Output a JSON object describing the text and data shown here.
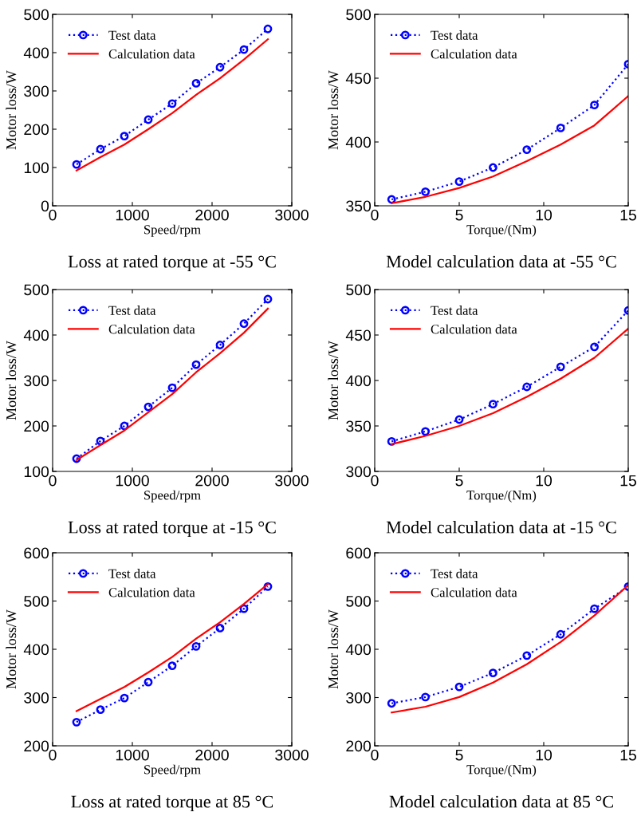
{
  "chart_data": [
    {
      "type": "line",
      "title": "Loss at rated torque at -55 °C",
      "xlabel": "Speed/rpm",
      "ylabel": "Motor loss/W",
      "x": [
        300,
        600,
        900,
        1200,
        1500,
        1800,
        2100,
        2400,
        2700
      ],
      "xlim": [
        0,
        3000
      ],
      "xticks": [
        0,
        1000,
        2000,
        3000
      ],
      "ylim": [
        0,
        500
      ],
      "yticks": [
        0,
        100,
        200,
        300,
        400,
        500
      ],
      "legend": "top left",
      "grid": false,
      "series": [
        {
          "name": "Test data",
          "color": "#0000ff",
          "marker": "circle",
          "line_style": "dotted",
          "values": [
            108,
            148,
            182,
            225,
            267,
            320,
            362,
            408,
            462
          ]
        },
        {
          "name": "Calculation data",
          "color": "#ff0000",
          "marker": "none",
          "line_style": "solid",
          "values": [
            92,
            127,
            160,
            200,
            242,
            290,
            333,
            382,
            435
          ]
        }
      ]
    },
    {
      "type": "line",
      "title": "Model calculation data at -55 °C",
      "xlabel": "Torque/(Nm)",
      "ylabel": "Motor loss/W",
      "x": [
        1,
        3,
        5,
        7,
        9,
        11,
        13,
        15
      ],
      "xlim": [
        0,
        15
      ],
      "xticks": [
        0,
        5,
        10,
        15
      ],
      "ylim": [
        350,
        500
      ],
      "yticks": [
        350,
        400,
        450,
        500
      ],
      "legend": "top left",
      "grid": false,
      "series": [
        {
          "name": "Test data",
          "color": "#0000ff",
          "marker": "circle",
          "line_style": "dotted",
          "values": [
            355,
            361,
            369,
            380,
            394,
            411,
            429,
            461
          ]
        },
        {
          "name": "Calculation data",
          "color": "#ff0000",
          "marker": "none",
          "line_style": "solid",
          "values": [
            352,
            357,
            364,
            373,
            385,
            398,
            413,
            436
          ]
        }
      ]
    },
    {
      "type": "line",
      "title": "Loss at rated torque at -15 °C",
      "xlabel": "Speed/rpm",
      "ylabel": "Motor loss/W",
      "x": [
        300,
        600,
        900,
        1200,
        1500,
        1800,
        2100,
        2400,
        2700
      ],
      "xlim": [
        0,
        3000
      ],
      "xticks": [
        0,
        1000,
        2000,
        3000
      ],
      "ylim": [
        100,
        500
      ],
      "yticks": [
        100,
        200,
        300,
        400,
        500
      ],
      "legend": "top left",
      "grid": false,
      "series": [
        {
          "name": "Test data",
          "color": "#0000ff",
          "marker": "circle",
          "line_style": "dotted",
          "values": [
            128,
            167,
            200,
            242,
            284,
            335,
            378,
            425,
            479
          ]
        },
        {
          "name": "Calculation data",
          "color": "#ff0000",
          "marker": "none",
          "line_style": "solid",
          "values": [
            125,
            158,
            190,
            230,
            270,
            318,
            360,
            405,
            458
          ]
        }
      ]
    },
    {
      "type": "line",
      "title": "Model calculation data at -15 °C",
      "xlabel": "Torque/(Nm)",
      "ylabel": "Motor loss/W",
      "x": [
        1,
        3,
        5,
        7,
        9,
        11,
        13,
        15
      ],
      "xlim": [
        0,
        15
      ],
      "xticks": [
        0,
        5,
        10,
        15
      ],
      "ylim": [
        300,
        500
      ],
      "yticks": [
        300,
        350,
        400,
        450,
        500
      ],
      "legend": "top left",
      "grid": false,
      "series": [
        {
          "name": "Test data",
          "color": "#0000ff",
          "marker": "circle",
          "line_style": "dotted",
          "values": [
            333,
            344,
            357,
            374,
            393,
            415,
            437,
            477
          ]
        },
        {
          "name": "Calculation data",
          "color": "#ff0000",
          "marker": "none",
          "line_style": "solid",
          "values": [
            330,
            339,
            350,
            364,
            382,
            402,
            425,
            457
          ]
        }
      ]
    },
    {
      "type": "line",
      "title": "Loss at rated torque at 85 °C",
      "xlabel": "Speed/rpm",
      "ylabel": "Motor loss/W",
      "x": [
        300,
        600,
        900,
        1200,
        1500,
        1800,
        2100,
        2400,
        2700
      ],
      "xlim": [
        0,
        3000
      ],
      "xticks": [
        0,
        1000,
        2000,
        3000
      ],
      "ylim": [
        200,
        600
      ],
      "yticks": [
        200,
        300,
        400,
        500,
        600
      ],
      "legend": "top left",
      "grid": false,
      "series": [
        {
          "name": "Test data",
          "color": "#0000ff",
          "marker": "circle",
          "line_style": "dotted",
          "values": [
            249,
            275,
            299,
            332,
            366,
            406,
            444,
            484,
            530
          ]
        },
        {
          "name": "Calculation data",
          "color": "#ff0000",
          "marker": "none",
          "line_style": "solid",
          "values": [
            272,
            297,
            322,
            352,
            384,
            422,
            456,
            494,
            535
          ]
        }
      ]
    },
    {
      "type": "line",
      "title": "Model calculation data at 85 °C",
      "xlabel": "Torque/(Nm)",
      "ylabel": "Motor loss/W",
      "x": [
        1,
        3,
        5,
        7,
        9,
        11,
        13,
        15
      ],
      "xlim": [
        0,
        15
      ],
      "xticks": [
        0,
        5,
        10,
        15
      ],
      "ylim": [
        200,
        600
      ],
      "yticks": [
        200,
        300,
        400,
        500,
        600
      ],
      "legend": "top left",
      "grid": false,
      "series": [
        {
          "name": "Test data",
          "color": "#0000ff",
          "marker": "circle",
          "line_style": "dotted",
          "values": [
            288,
            301,
            322,
            351,
            387,
            431,
            484,
            530
          ]
        },
        {
          "name": "Calculation data",
          "color": "#ff0000",
          "marker": "none",
          "line_style": "solid",
          "values": [
            269,
            281,
            301,
            331,
            369,
            415,
            470,
            533
          ]
        }
      ]
    }
  ]
}
